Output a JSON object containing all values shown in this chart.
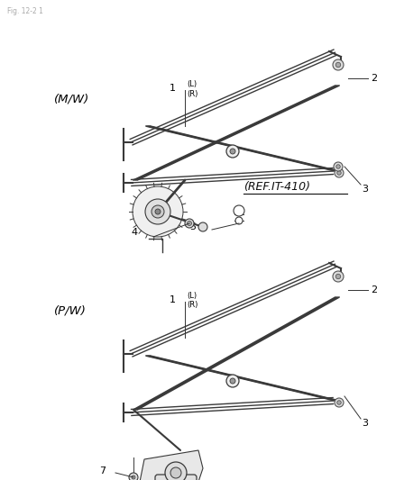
{
  "bg_color": "#ffffff",
  "line_color": "#333333",
  "text_color": "#000000",
  "fig_width": 4.39,
  "fig_height": 5.33,
  "dpi": 100,
  "top_label": "Fig. 12-2 1",
  "mw_label": "(M/W)",
  "pw_label": "(P/W)",
  "ref_text": "(REF.IT-410)",
  "lc": "#3a3a3a",
  "thin_lw": 0.8,
  "med_lw": 1.4,
  "thick_lw": 2.2,
  "rail_lw": 2.5
}
